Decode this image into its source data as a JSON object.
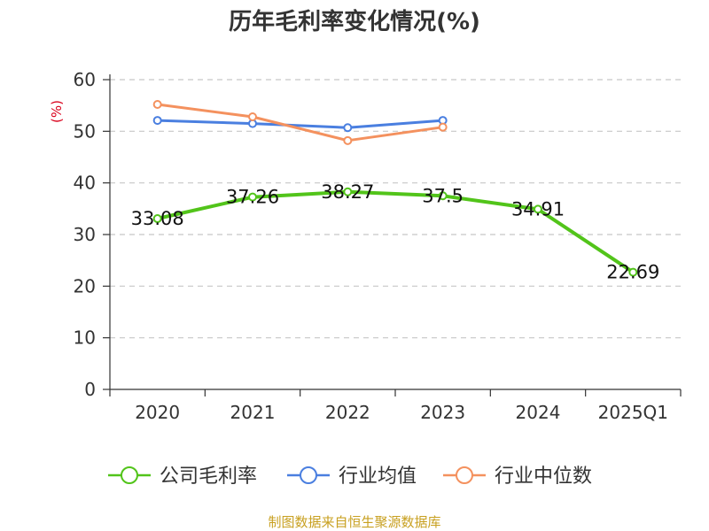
{
  "chart_data": {
    "type": "line",
    "title": "历年毛利率变化情况(%)",
    "ylabel": "(%)",
    "ylim": [
      0,
      60
    ],
    "yticks": [
      0,
      10,
      20,
      30,
      40,
      50,
      60
    ],
    "categories": [
      "2020",
      "2021",
      "2022",
      "2023",
      "2024",
      "2025Q1"
    ],
    "grid": true,
    "legend_position": "bottom",
    "series": [
      {
        "name": "公司毛利率",
        "color": "#52c41a",
        "values": [
          33.08,
          37.26,
          38.27,
          37.5,
          34.91,
          22.69
        ],
        "labels": [
          "33.08",
          "37.26",
          "38.27",
          "37.5",
          "34.91",
          "22.69"
        ]
      },
      {
        "name": "行业均值",
        "color": "#4a7fe0",
        "values": [
          52.1,
          51.5,
          50.7,
          52.1,
          null,
          null
        ]
      },
      {
        "name": "行业中位数",
        "color": "#f4915e",
        "values": [
          55.2,
          52.8,
          48.2,
          50.8,
          null,
          null
        ]
      }
    ]
  },
  "source_text": "制图数据来自恒生聚源数据库"
}
